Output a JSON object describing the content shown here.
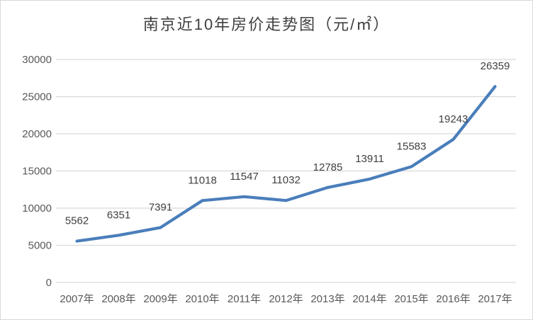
{
  "chart_data": {
    "type": "line",
    "title": "南京近10年房价走势图（元/㎡）",
    "categories": [
      "2007年",
      "2008年",
      "2009年",
      "2010年",
      "2011年",
      "2012年",
      "2013年",
      "2014年",
      "2015年",
      "2016年",
      "2017年"
    ],
    "values": [
      5562,
      6351,
      7391,
      11018,
      11547,
      11032,
      12785,
      13911,
      15583,
      19243,
      26359
    ],
    "ylim": [
      0,
      30000
    ],
    "ytick_step": 5000,
    "yticks": [
      "0",
      "5000",
      "10000",
      "15000",
      "20000",
      "25000",
      "30000"
    ],
    "xlabel": "",
    "ylabel": "",
    "grid": "horizontal-only",
    "legend": "none",
    "data_labels": true,
    "colors": {
      "line": "#4a7ebb",
      "gridline": "#d9d9d9",
      "axis_text": "#595959",
      "data_label_text": "#404040",
      "title_text": "#404040",
      "background": "#ffffff",
      "frame_border": "#d9d9d9"
    }
  }
}
